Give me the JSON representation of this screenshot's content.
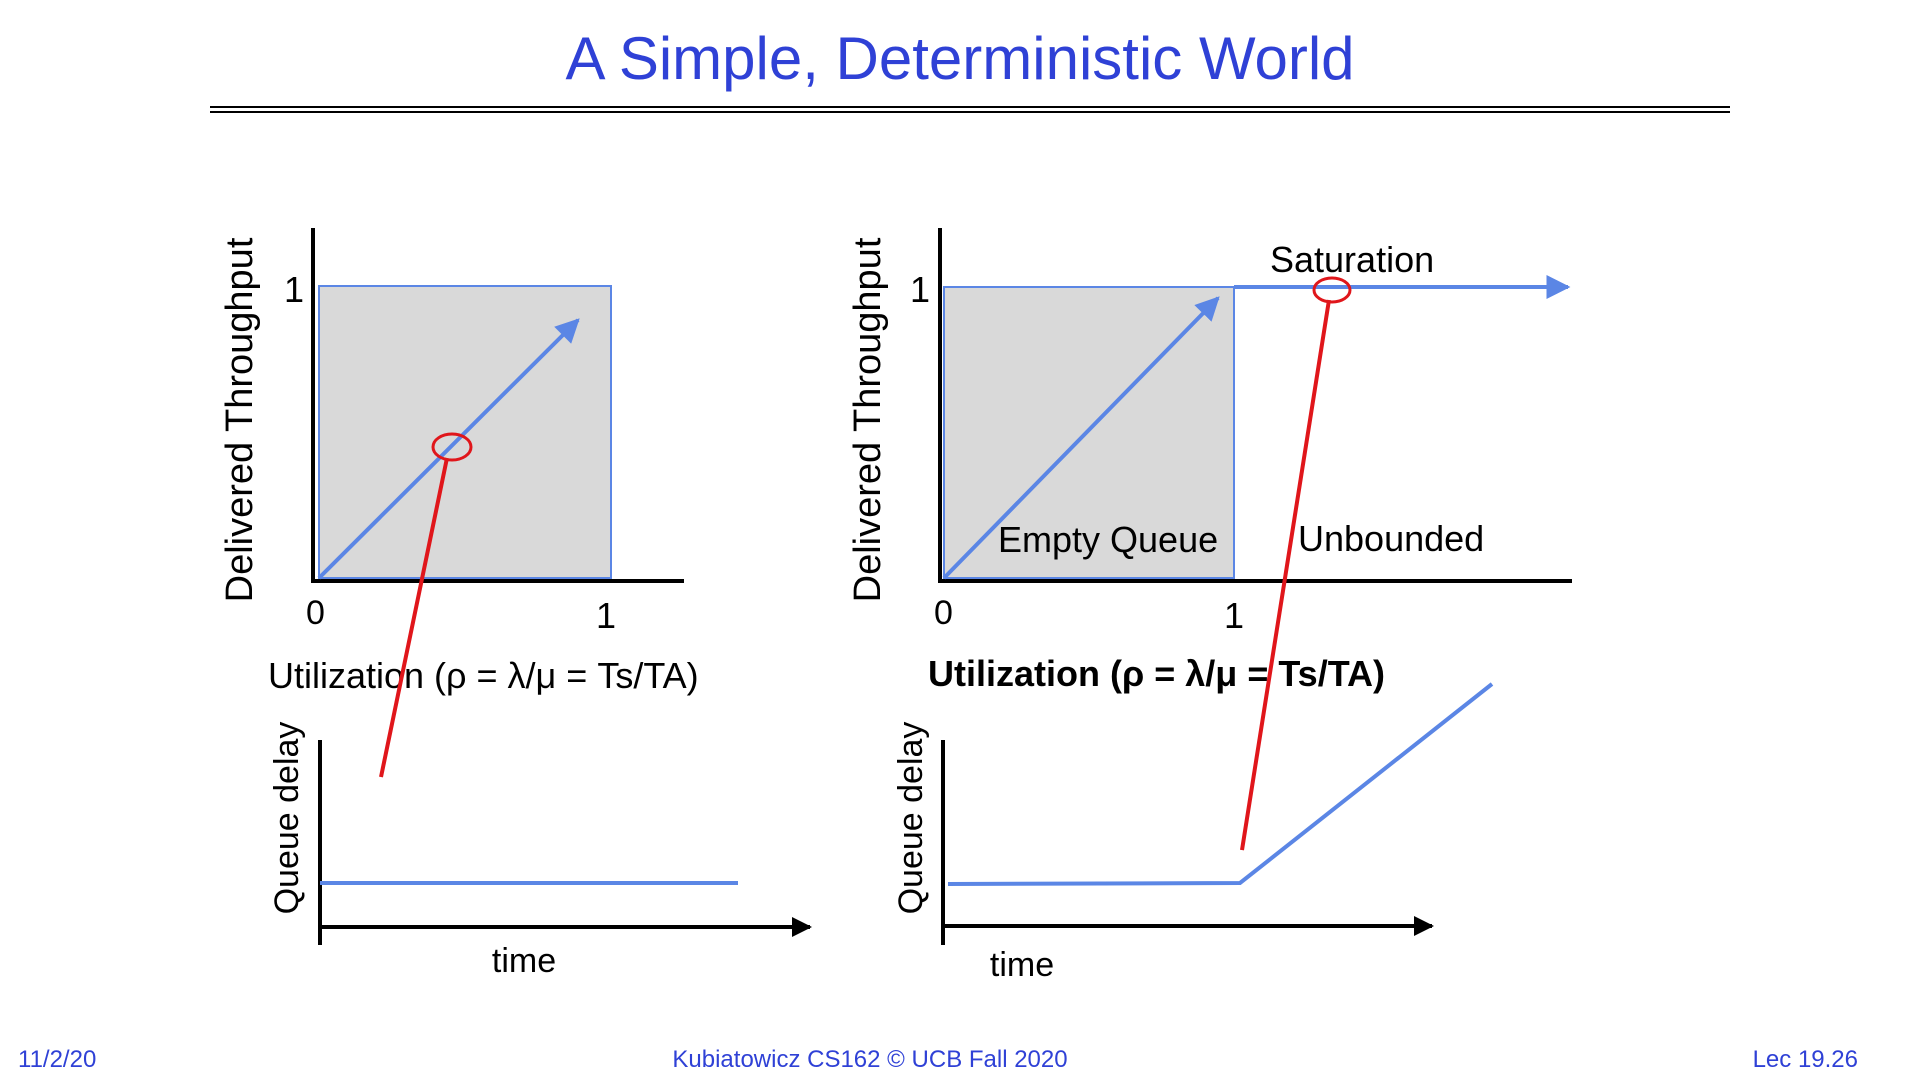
{
  "title": "A Simple, Deterministic World",
  "colors": {
    "title": "#2f41d6",
    "curve": "#5b86e5",
    "box_fill": "#d9d9d9",
    "highlight": "#e0161b",
    "axis": "#000000"
  },
  "left_diagram": {
    "top_plot": {
      "y_label": "Delivered Throughput",
      "y_tick": "1",
      "x_tick_start": "0",
      "x_tick_end": "1",
      "x_label": "Utilization (ρ = λ/μ = Ts/TA)"
    },
    "bottom_plot": {
      "y_label": "Queue delay",
      "x_label": "time"
    }
  },
  "right_diagram": {
    "top_plot": {
      "y_label": "Delivered Throughput",
      "y_tick": "1",
      "x_tick_start": "0",
      "x_tick_end": "1",
      "x_label": "Utilization (ρ = λ/μ = Ts/TA)",
      "saturation_label": "Saturation",
      "empty_queue_label": "Empty Queue",
      "unbounded_label": "Unbounded"
    },
    "bottom_plot": {
      "y_label": "Queue delay",
      "x_label": "time"
    }
  },
  "footer": {
    "date": "11/2/20",
    "course": "Kubiatowicz CS162 © UCB Fall 2020",
    "lecture": "Lec 19.26"
  }
}
